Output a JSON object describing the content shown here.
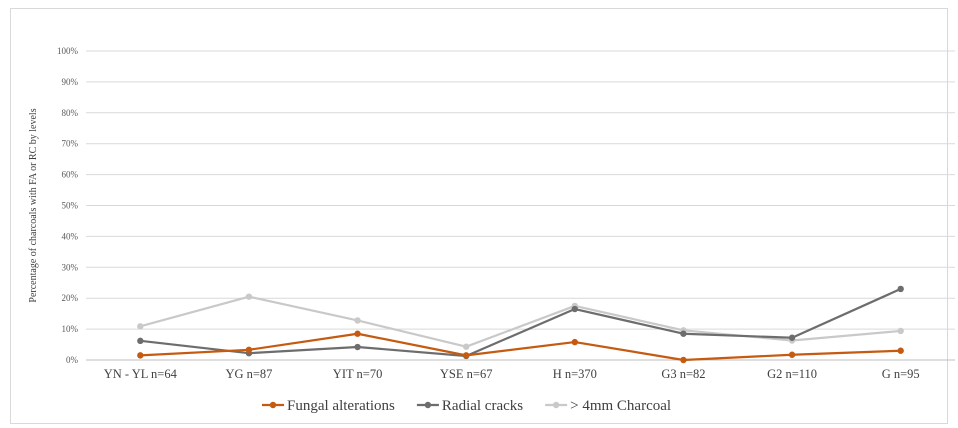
{
  "chart_data": {
    "type": "line",
    "title": "",
    "xlabel": "",
    "ylabel": "Percentage of charcoals with FA or RC by levels",
    "ylim": [
      0,
      100
    ],
    "yticks": [
      "0%",
      "10%",
      "20%",
      "30%",
      "40%",
      "50%",
      "60%",
      "70%",
      "80%",
      "90%",
      "100%"
    ],
    "grid": true,
    "legend_position": "bottom",
    "categories": [
      "YN - YL n=64",
      "YG n=87",
      "YIT n=70",
      "YSE n=67",
      "H n=370",
      "G3 n=82",
      "G2 n=110",
      "G n=95"
    ],
    "series": [
      {
        "name": "Fungal alterations",
        "color": "#c55a11",
        "values": [
          1.5,
          3.3,
          8.5,
          1.5,
          5.8,
          0.0,
          1.7,
          3.0
        ]
      },
      {
        "name": "Radial cracks",
        "color": "#6d6d6d",
        "values": [
          6.2,
          2.2,
          4.2,
          1.3,
          16.5,
          8.5,
          7.2,
          23.0
        ]
      },
      {
        "name": "> 4mm Charcoal",
        "color": "#c9c9c9",
        "values": [
          10.9,
          20.5,
          12.8,
          4.3,
          17.5,
          9.6,
          6.3,
          9.4
        ]
      }
    ]
  }
}
